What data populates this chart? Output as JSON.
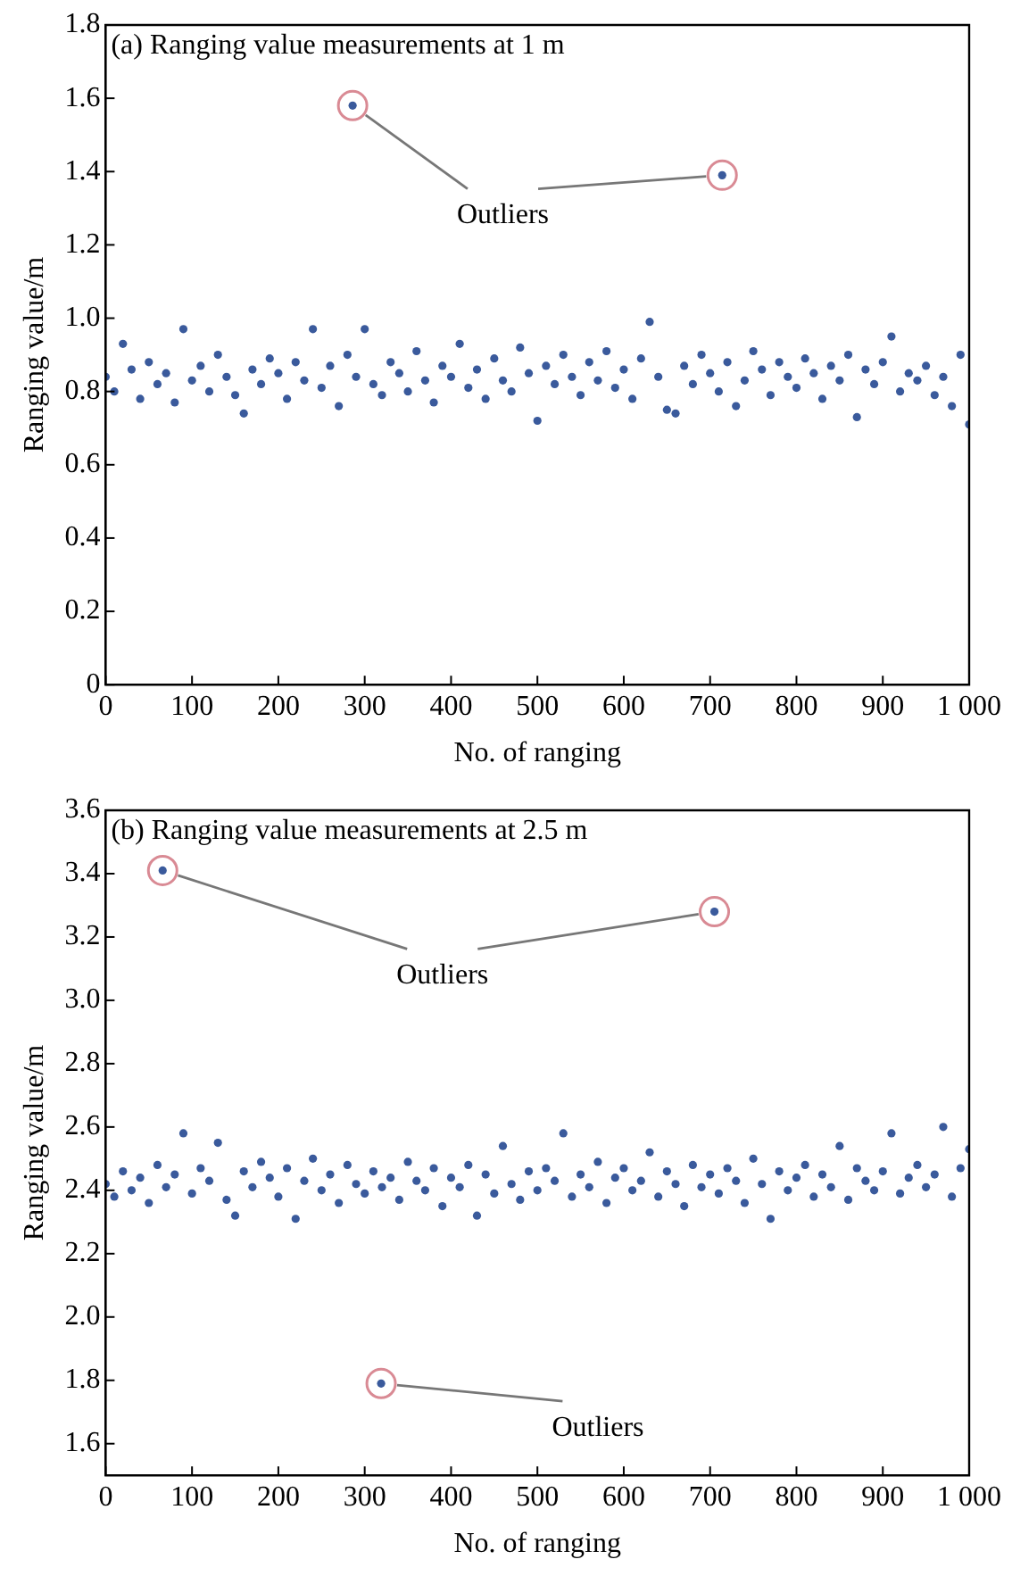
{
  "chart_data": [
    {
      "type": "scatter",
      "title": "(a) Ranging value measurements at 1 m",
      "xlabel": "No. of ranging",
      "ylabel": "Ranging value/m",
      "xlim": [
        0,
        1000
      ],
      "ylim": [
        0,
        1.8
      ],
      "xticks": [
        0,
        100,
        200,
        300,
        400,
        500,
        600,
        700,
        800,
        900,
        {
          "value": 1000,
          "label": "1 000"
        }
      ],
      "yticks": [
        0,
        0.2,
        0.4,
        0.6,
        0.8,
        {
          "value": 1,
          "label": "1.0"
        },
        1.2,
        1.4,
        1.6,
        1.8
      ],
      "marker": "circle",
      "annotations": [
        "Outliers"
      ],
      "series": [
        {
          "color": "#3a5a9c",
          "x": [
            0,
            10,
            20,
            30,
            40,
            50,
            60,
            70,
            80,
            90,
            100,
            110,
            120,
            130,
            140,
            150,
            160,
            170,
            180,
            190,
            200,
            210,
            220,
            230,
            240,
            250,
            260,
            270,
            280,
            290,
            300,
            310,
            320,
            330,
            340,
            350,
            360,
            370,
            380,
            390,
            400,
            410,
            420,
            430,
            440,
            450,
            460,
            470,
            480,
            490,
            500,
            510,
            520,
            530,
            540,
            550,
            560,
            570,
            580,
            590,
            600,
            610,
            620,
            630,
            640,
            650,
            660,
            670,
            680,
            690,
            700,
            710,
            720,
            730,
            740,
            750,
            760,
            770,
            780,
            790,
            800,
            810,
            820,
            830,
            840,
            850,
            860,
            870,
            880,
            890,
            900,
            910,
            920,
            930,
            940,
            950,
            960,
            970,
            980,
            990,
            1000
          ],
          "values": [
            0.84,
            0.8,
            0.93,
            0.86,
            0.78,
            0.88,
            0.82,
            0.85,
            0.77,
            0.97,
            0.83,
            0.87,
            0.8,
            0.9,
            0.84,
            0.79,
            0.74,
            0.86,
            0.82,
            0.89,
            0.85,
            0.78,
            0.88,
            0.83,
            0.97,
            0.81,
            0.87,
            0.76,
            0.9,
            0.84,
            0.97,
            0.82,
            0.79,
            0.88,
            0.85,
            0.8,
            0.91,
            0.83,
            0.77,
            0.87,
            0.84,
            0.93,
            0.81,
            0.86,
            0.78,
            0.89,
            0.83,
            0.8,
            0.92,
            0.85,
            0.72,
            0.87,
            0.82,
            0.9,
            0.84,
            0.79,
            0.88,
            0.83,
            0.91,
            0.81,
            0.86,
            0.78,
            0.89,
            0.99,
            0.84,
            0.75,
            0.74,
            0.87,
            0.82,
            0.9,
            0.85,
            0.8,
            0.88,
            0.76,
            0.83,
            0.91,
            0.86,
            0.79,
            0.88,
            0.84,
            0.81,
            0.89,
            0.85,
            0.78,
            0.87,
            0.83,
            0.9,
            0.73,
            0.86,
            0.82,
            0.88,
            0.95,
            0.8,
            0.85,
            0.83,
            0.87,
            0.79,
            0.84,
            0.76,
            0.9,
            0.71
          ]
        },
        {
          "color": "#3a5a9c",
          "x": [
            286,
            714
          ],
          "values": [
            1.58,
            1.39
          ]
        }
      ]
    },
    {
      "type": "scatter",
      "title": "(b) Ranging value measurements at 2.5 m",
      "xlabel": "No. of ranging",
      "ylabel": "Ranging value/m",
      "xlim": [
        0,
        1000
      ],
      "ylim": [
        1.5,
        3.6
      ],
      "xticks": [
        0,
        100,
        200,
        300,
        400,
        500,
        600,
        700,
        800,
        900,
        {
          "value": 1000,
          "label": "1 000"
        }
      ],
      "yticks": [
        1.6,
        1.8,
        {
          "value": 2,
          "label": "2.0"
        },
        2.2,
        2.4,
        2.6,
        2.8,
        {
          "value": 3,
          "label": "3.0"
        },
        3.2,
        3.4,
        3.6
      ],
      "marker": "circle",
      "annotations": [
        "Outliers",
        "Outliers"
      ],
      "series": [
        {
          "color": "#3a5a9c",
          "x": [
            0,
            10,
            20,
            30,
            40,
            50,
            60,
            70,
            80,
            90,
            100,
            110,
            120,
            130,
            140,
            150,
            160,
            170,
            180,
            190,
            200,
            210,
            220,
            230,
            240,
            250,
            260,
            270,
            280,
            290,
            300,
            310,
            320,
            330,
            340,
            350,
            360,
            370,
            380,
            390,
            400,
            410,
            420,
            430,
            440,
            450,
            460,
            470,
            480,
            490,
            500,
            510,
            520,
            530,
            540,
            550,
            560,
            570,
            580,
            590,
            600,
            610,
            620,
            630,
            640,
            650,
            660,
            670,
            680,
            690,
            700,
            710,
            720,
            730,
            740,
            750,
            760,
            770,
            780,
            790,
            800,
            810,
            820,
            830,
            840,
            850,
            860,
            870,
            880,
            890,
            900,
            910,
            920,
            930,
            940,
            950,
            960,
            970,
            980,
            990,
            1000
          ],
          "values": [
            2.42,
            2.38,
            2.46,
            2.4,
            2.44,
            2.36,
            2.48,
            2.41,
            2.45,
            2.58,
            2.39,
            2.47,
            2.43,
            2.55,
            2.37,
            2.32,
            2.46,
            2.41,
            2.49,
            2.44,
            2.38,
            2.47,
            2.31,
            2.43,
            2.5,
            2.4,
            2.45,
            2.36,
            2.48,
            2.42,
            2.39,
            2.46,
            2.41,
            2.44,
            2.37,
            2.49,
            2.43,
            2.4,
            2.47,
            2.35,
            2.44,
            2.41,
            2.48,
            2.32,
            2.45,
            2.39,
            2.54,
            2.42,
            2.37,
            2.46,
            2.4,
            2.47,
            2.43,
            2.58,
            2.38,
            2.45,
            2.41,
            2.49,
            2.36,
            2.44,
            2.47,
            2.4,
            2.43,
            2.52,
            2.38,
            2.46,
            2.42,
            2.35,
            2.48,
            2.41,
            2.45,
            2.39,
            2.47,
            2.43,
            2.36,
            2.5,
            2.42,
            2.31,
            2.46,
            2.4,
            2.44,
            2.48,
            2.38,
            2.45,
            2.41,
            2.54,
            2.37,
            2.47,
            2.43,
            2.4,
            2.46,
            2.58,
            2.39,
            2.44,
            2.48,
            2.41,
            2.45,
            2.6,
            2.38,
            2.47,
            2.53
          ]
        },
        {
          "color": "#3a5a9c",
          "x": [
            66,
            705,
            319
          ],
          "values": [
            3.41,
            3.28,
            1.79
          ]
        }
      ]
    }
  ]
}
